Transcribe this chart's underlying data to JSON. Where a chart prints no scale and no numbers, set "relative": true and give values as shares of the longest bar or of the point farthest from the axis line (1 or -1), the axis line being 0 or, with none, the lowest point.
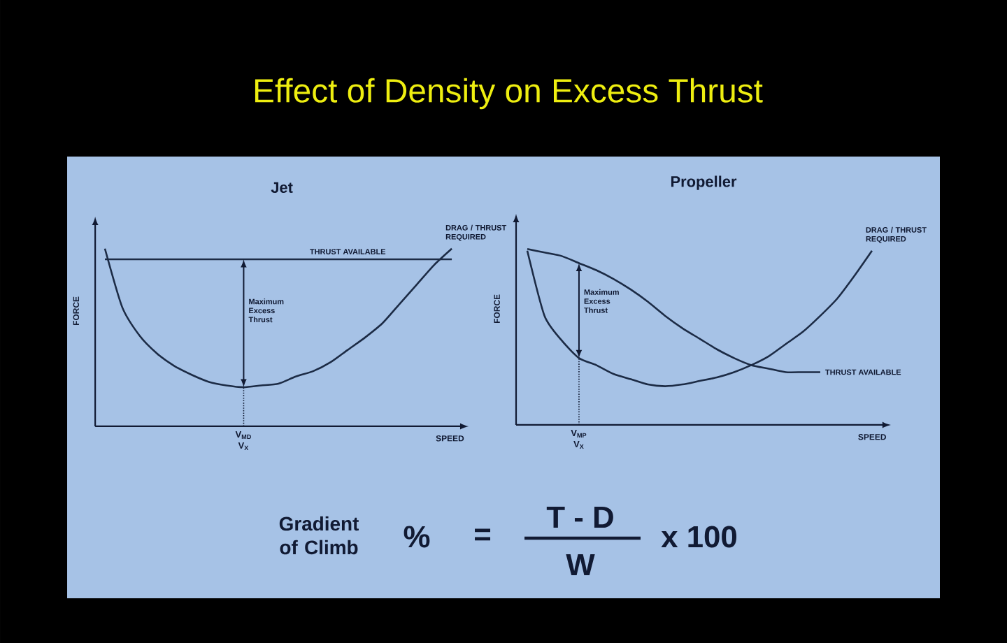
{
  "chart_data": [
    {
      "type": "other",
      "title": "Effect of Density on Excess Thrust"
    },
    {
      "type": "line",
      "title": "Jet",
      "xlabel": "SPEED",
      "ylabel": "FORCE",
      "relative": true,
      "categories": [
        null,
        null,
        null,
        null,
        null,
        null,
        null,
        null,
        null,
        null,
        null,
        null,
        null,
        null,
        null,
        null,
        null,
        null,
        null,
        null,
        null
      ],
      "series": [
        {
          "name": "THRUST AVAILABLE",
          "color": "#1c2b45",
          "values": [
            0.94,
            0.94,
            0.94,
            0.94,
            0.94,
            0.94,
            0.94,
            0.94,
            0.94,
            0.94,
            0.94,
            0.94,
            0.94,
            0.94,
            0.94,
            0.94,
            0.94,
            0.94,
            0.94,
            0.94,
            0.94
          ]
        },
        {
          "name": "DRAG / THRUST REQUIRED",
          "color": "#1c2b45",
          "values": [
            1.0,
            0.67,
            0.51,
            0.41,
            0.34,
            0.29,
            0.25,
            0.23,
            0.22,
            0.23,
            0.24,
            0.28,
            0.31,
            0.36,
            0.43,
            0.5,
            0.58,
            0.69,
            0.8,
            0.91,
            1.0
          ]
        }
      ],
      "annotations": [
        "Maximum Excess Thrust",
        "V$_{MD}$ V$_{X}$"
      ]
    },
    {
      "type": "line",
      "title": "Propeller",
      "xlabel": "SPEED",
      "ylabel": "FORCE",
      "relative": true,
      "categories": [
        null,
        null,
        null,
        null,
        null,
        null,
        null,
        null,
        null,
        null,
        null,
        null,
        null,
        null,
        null,
        null,
        null,
        null,
        null,
        null,
        null
      ],
      "series": [
        {
          "name": "THRUST AVAILABLE",
          "color": "#1c2b45",
          "values": [
            1.0,
            0.98,
            0.96,
            0.92,
            0.88,
            0.83,
            0.77,
            0.7,
            0.62,
            0.55,
            0.49,
            0.43,
            0.38,
            0.34,
            0.32,
            0.3,
            0.3,
            0.3,
            null,
            null,
            null
          ]
        },
        {
          "name": "DRAG / THRUST REQUIRED",
          "color": "#1c2b45",
          "values": [
            0.99,
            0.62,
            0.48,
            0.38,
            0.34,
            0.29,
            0.26,
            0.23,
            0.22,
            0.23,
            0.25,
            0.27,
            0.3,
            0.34,
            0.39,
            0.46,
            0.53,
            0.62,
            0.72,
            0.85,
            0.99
          ]
        }
      ],
      "annotations": [
        "Maximum Excess Thrust",
        "V$_{MP}$ V$_{X}$"
      ]
    },
    {
      "type": "other",
      "annotations": [
        "Gradient of Climb",
        "%",
        "=",
        "T - D",
        "W",
        "x 100"
      ]
    }
  ]
}
